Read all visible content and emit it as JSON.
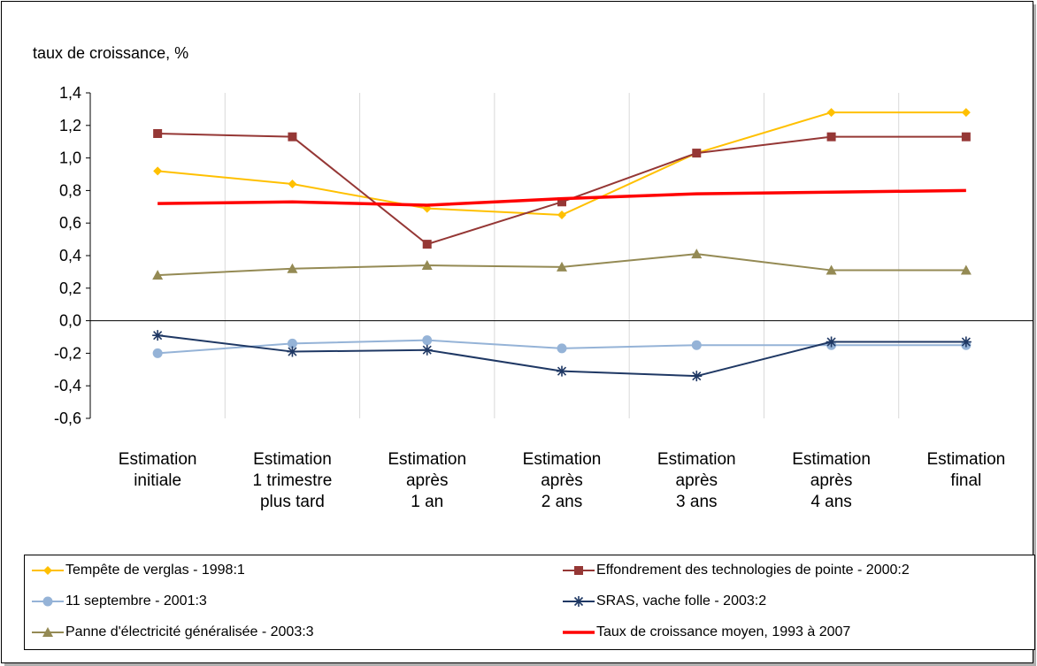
{
  "chart_data": {
    "type": "line",
    "ylabel": "taux de croissance, %",
    "ylim": [
      -0.6,
      1.4
    ],
    "yticks": [
      "1,4",
      "1,2",
      "1,0",
      "0,8",
      "0,6",
      "0,4",
      "0,2",
      "0,0",
      "-0,2",
      "-0,4",
      "-0,6"
    ],
    "categories": [
      [
        "Estimation",
        "initiale"
      ],
      [
        "Estimation",
        "1 trimestre",
        "plus tard"
      ],
      [
        "Estimation",
        "après",
        "1 an"
      ],
      [
        "Estimation",
        "après",
        "2 ans"
      ],
      [
        "Estimation",
        "après",
        "3 ans"
      ],
      [
        "Estimation",
        "après",
        "4 ans"
      ],
      [
        "Estimation",
        "final"
      ]
    ],
    "grid": "vertical",
    "legend_position": "bottom",
    "series": [
      {
        "name": "Tempête de verglas - 1998:1",
        "color": "#FFC000",
        "marker": "diamond",
        "values": [
          0.92,
          0.84,
          0.69,
          0.65,
          1.03,
          1.28,
          1.28
        ]
      },
      {
        "name": "Effondrement des technologies de pointe - 2000:2",
        "color": "#953735",
        "marker": "square",
        "values": [
          1.15,
          1.13,
          0.47,
          0.73,
          1.03,
          1.13,
          1.13
        ]
      },
      {
        "name": "11 septembre - 2001:3",
        "color": "#95B3D7",
        "marker": "circle",
        "values": [
          -0.2,
          -0.14,
          -0.12,
          -0.17,
          -0.15,
          -0.15,
          -0.15
        ]
      },
      {
        "name": "SRAS, vache folle - 2003:2",
        "color": "#1F3864",
        "marker": "star",
        "values": [
          -0.09,
          -0.19,
          -0.18,
          -0.31,
          -0.34,
          -0.13,
          -0.13
        ]
      },
      {
        "name": "Panne d'électricité généralisée - 2003:3",
        "color": "#948A54",
        "marker": "triangle",
        "values": [
          0.28,
          0.32,
          0.34,
          0.33,
          0.41,
          0.31,
          0.31
        ]
      },
      {
        "name": "Taux de croissance moyen, 1993 à 2007",
        "color": "#FF0000",
        "marker": "none",
        "values": [
          0.72,
          0.73,
          0.71,
          0.75,
          0.78,
          0.79,
          0.8
        ]
      }
    ]
  }
}
